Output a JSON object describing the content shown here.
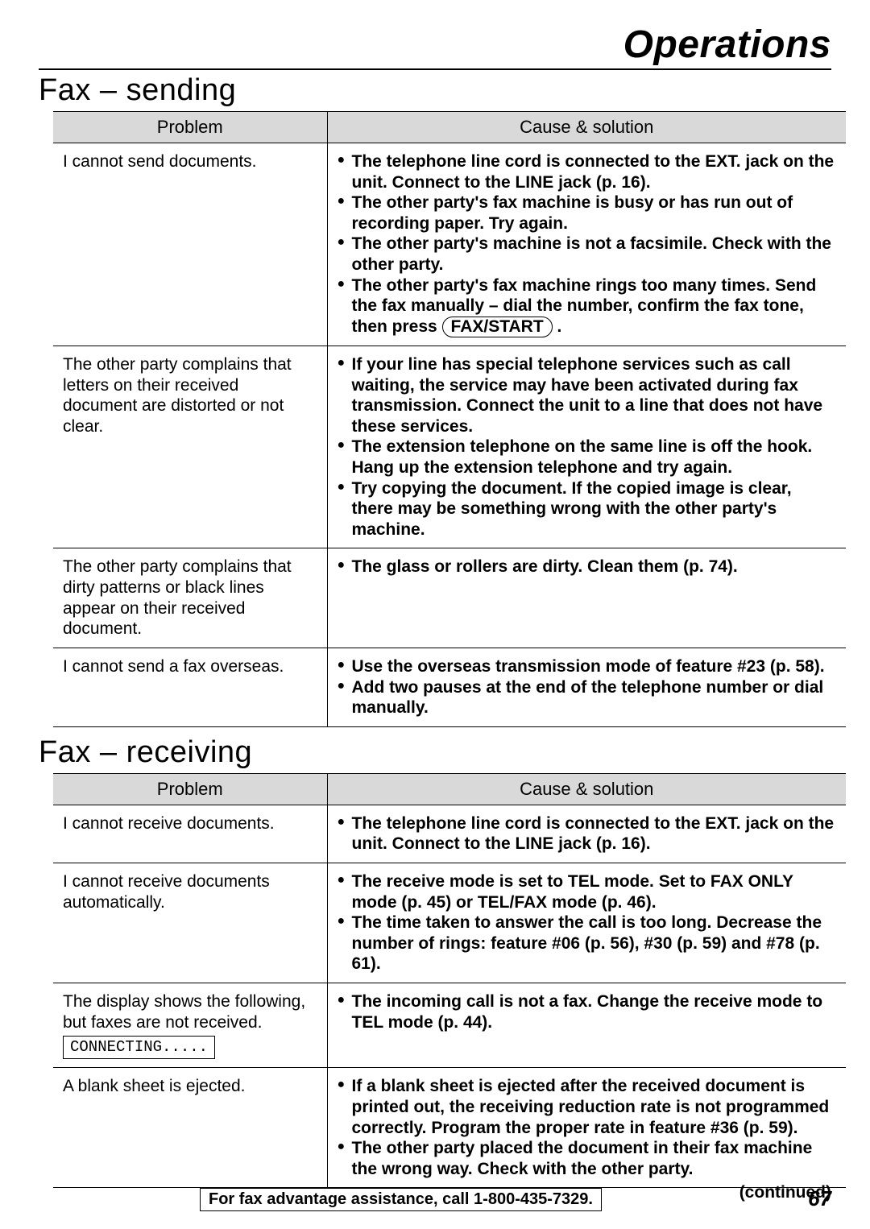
{
  "page": {
    "title": "Operations",
    "continued": "(continued)",
    "assist": "For fax advantage assistance, call 1-800-435-7329.",
    "pagenum": "67"
  },
  "columns": {
    "problem": "Problem",
    "solution": "Cause & solution"
  },
  "sending": {
    "title": "Fax – sending",
    "rows": [
      {
        "problem": "I cannot send documents.",
        "bullets": [
          "The telephone line cord is connected to the EXT. jack on the unit. Connect to the LINE jack (p. 16).",
          "The other party's fax machine is busy or has run out of recording paper. Try again.",
          "The other party's machine is not a facsimile. Check with the other party.",
          "The other party's fax machine rings too many times. Send the fax manually – dial the number, confirm the fax tone, then press __FAXBTN__ ."
        ]
      },
      {
        "problem": "The other party complains that letters on their received document are distorted or not clear.",
        "bullets": [
          "If your line has special telephone services such as call waiting, the service may have been activated during fax transmission. Connect the unit to a line that does not have these services.",
          "The extension telephone on the same line is off the hook. Hang up the extension telephone and try again.",
          "Try copying the document. If the copied image is clear, there may be something wrong with the other party's machine."
        ]
      },
      {
        "problem": "The other party complains that dirty patterns or black lines appear on their received document.",
        "bullets": [
          "The glass or rollers are dirty. Clean them (p. 74)."
        ]
      },
      {
        "problem": "I cannot send a fax overseas.",
        "bullets": [
          "Use the overseas transmission mode of feature #23 (p. 58).",
          "Add two pauses at the end of the telephone number or dial manually."
        ]
      }
    ]
  },
  "receiving": {
    "title": "Fax – receiving",
    "rows": [
      {
        "problem": "I cannot receive documents.",
        "bullets": [
          "The telephone line cord is connected to the EXT. jack on the unit. Connect to the LINE jack (p. 16)."
        ]
      },
      {
        "problem": "I cannot receive documents automatically.",
        "bullets": [
          "The receive mode is set to TEL mode. Set to FAX ONLY mode (p. 45) or TEL/FAX mode (p. 46).",
          "The time taken to answer the call is too long. Decrease the number of rings: feature #06 (p. 56), #30 (p. 59) and #78 (p. 61)."
        ]
      },
      {
        "problem": "The display shows the following, but faxes are not received.",
        "box": "CONNECTING.....",
        "bullets": [
          "The incoming call is not a fax. Change the receive mode to TEL mode (p. 44)."
        ]
      },
      {
        "problem": "A blank sheet is ejected.",
        "bullets": [
          "If a blank sheet is ejected after the received document is printed out, the receiving reduction rate is not programmed correctly. Program the proper rate in feature #36 (p. 59).",
          "The other party placed the document in their fax machine the wrong way. Check with the other party."
        ]
      }
    ]
  },
  "faxbtn": "FAX/START"
}
